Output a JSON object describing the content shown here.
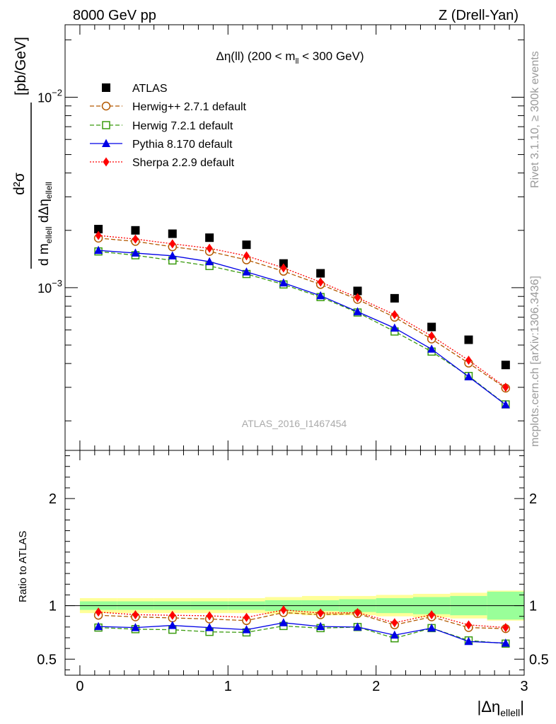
{
  "header": {
    "left": "8000 GeV pp",
    "right": "Z (Drell-Yan)"
  },
  "side_labels": {
    "rivet": "Rivet 3.1.10, ≥ 300k events",
    "mcplots": "mcplots.cern.ch [arXiv:1306.3436]"
  },
  "colors": {
    "atlas": "#000000",
    "herwigpp": "#b35900",
    "herwig7": "#3a9b0f",
    "pythia": "#0000e6",
    "sherpa": "#ff0000",
    "band_outer": "#ffff99",
    "band_inner": "#99ff99"
  },
  "chart_data": [
    {
      "panel": "main",
      "type": "line",
      "title": "Δη(ll) (200 < m",
      "title_sub": "ll",
      "title_tail": " < 300 GeV)",
      "ylabel_num": "d²σ",
      "ylabel_den": "d m",
      "ylabel_den_sub": "ellell",
      "ylabel_den_mid": " dΔη",
      "ylabel_den_sub2": "ellell",
      "ylabel_unit": "[pb/GeV]",
      "yscale": "log",
      "ylim": [
        0.00014,
        0.024
      ],
      "xlim": [
        -0.1,
        3.0
      ],
      "ytick_labels": [
        {
          "value": 0.01,
          "base": "10",
          "exp": "−2"
        },
        {
          "value": 0.001,
          "base": "10",
          "exp": "−3"
        }
      ],
      "watermark": "ATLAS_2016_I1467454",
      "legend_position": "top-left",
      "x": [
        0.125,
        0.375,
        0.625,
        0.875,
        1.125,
        1.375,
        1.625,
        1.875,
        2.125,
        2.375,
        2.625,
        2.875
      ],
      "series": [
        {
          "key": "atlas",
          "name": "ATLAS",
          "marker": "square",
          "line": "none",
          "values": [
            0.00203,
            0.002,
            0.00192,
            0.00183,
            0.00168,
            0.00134,
            0.00119,
            0.000962,
            0.00088,
            0.000622,
            0.000533,
            0.000393
          ]
        },
        {
          "key": "herwigpp",
          "name": "Herwig++ 2.7.1 default",
          "marker": "open-circle",
          "line": "dashed",
          "values": [
            0.00182,
            0.00175,
            0.00164,
            0.00155,
            0.0014,
            0.00122,
            0.00104,
            0.000868,
            0.0007,
            0.000538,
            0.000402,
            0.000297
          ]
        },
        {
          "key": "herwig7",
          "name": "Herwig 7.2.1 default",
          "marker": "open-square",
          "line": "dashed",
          "values": [
            0.00155,
            0.00148,
            0.00139,
            0.0013,
            0.00118,
            0.00104,
            0.000893,
            0.000741,
            0.000589,
            0.000462,
            0.000344,
            0.000244
          ]
        },
        {
          "key": "pythia",
          "name": "Pythia 8.170 default",
          "marker": "triangle",
          "line": "solid",
          "values": [
            0.00157,
            0.00152,
            0.00147,
            0.00137,
            0.00121,
            0.00106,
            0.000908,
            0.000748,
            0.000614,
            0.000476,
            0.000341,
            0.000243
          ]
        },
        {
          "key": "sherpa",
          "name": "Sherpa 2.2.9 default",
          "marker": "diamond",
          "line": "dotted",
          "values": [
            0.00188,
            0.0018,
            0.0017,
            0.00161,
            0.00147,
            0.00127,
            0.00107,
            0.000887,
            0.000722,
            0.000558,
            0.000416,
            0.0003
          ]
        }
      ]
    },
    {
      "panel": "ratio",
      "type": "line",
      "ylabel": "Ratio to ATLAS",
      "ylim": [
        0.35,
        2.45
      ],
      "xlim": [
        -0.1,
        3.0
      ],
      "yticks": [
        0.5,
        1,
        2
      ],
      "ytick_labels": [
        "0.5",
        "1",
        "2"
      ],
      "xticks": [
        0,
        1,
        2,
        3
      ],
      "xtick_labels": [
        "0",
        "1",
        "2",
        "3"
      ],
      "xlabel": "|Δη",
      "xlabel_sub": "ellell",
      "xlabel_tail": "|",
      "x": [
        0.125,
        0.375,
        0.625,
        0.875,
        1.125,
        1.375,
        1.625,
        1.875,
        2.125,
        2.375,
        2.625,
        2.875
      ],
      "band_inner": [
        0.04,
        0.04,
        0.04,
        0.04,
        0.04,
        0.05,
        0.05,
        0.06,
        0.07,
        0.08,
        0.09,
        0.13
      ],
      "band_outer": [
        0.07,
        0.07,
        0.07,
        0.07,
        0.07,
        0.08,
        0.09,
        0.09,
        0.1,
        0.11,
        0.12,
        0.14
      ],
      "series": [
        {
          "key": "herwigpp",
          "values": [
            0.91,
            0.895,
            0.885,
            0.875,
            0.86,
            0.935,
            0.915,
            0.925,
            0.82,
            0.895,
            0.795,
            0.785
          ]
        },
        {
          "key": "herwig7",
          "values": [
            0.795,
            0.78,
            0.775,
            0.755,
            0.75,
            0.81,
            0.79,
            0.8,
            0.695,
            0.79,
            0.675,
            0.645
          ]
        },
        {
          "key": "pythia",
          "values": [
            0.805,
            0.795,
            0.815,
            0.795,
            0.775,
            0.84,
            0.805,
            0.8,
            0.725,
            0.79,
            0.665,
            0.65
          ]
        },
        {
          "key": "sherpa",
          "values": [
            0.94,
            0.915,
            0.91,
            0.905,
            0.89,
            0.96,
            0.93,
            0.935,
            0.84,
            0.915,
            0.82,
            0.795
          ]
        }
      ]
    }
  ]
}
